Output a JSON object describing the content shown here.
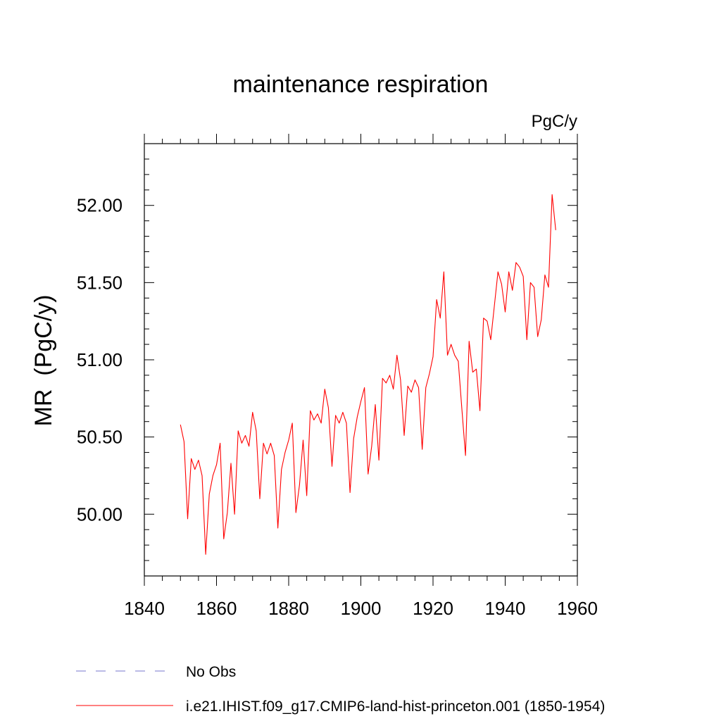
{
  "chart_data": {
    "type": "line",
    "title": "maintenance respiration",
    "units_label": "PgC/y",
    "ylabel": "MR  (PgC/y)",
    "xlabel": "",
    "xlim": [
      1840,
      1960
    ],
    "ylim": [
      49.6,
      52.4
    ],
    "x_ticks": [
      1840,
      1860,
      1880,
      1900,
      1920,
      1940,
      1960
    ],
    "y_ticks": [
      50.0,
      50.5,
      51.0,
      51.5,
      52.0
    ],
    "y_tick_labels": [
      "50.00",
      "50.50",
      "51.00",
      "51.50",
      "52.00"
    ],
    "grid": false,
    "legend_position": "bottom",
    "series": [
      {
        "name": "i.e21.IHIST.f09_g17.CMIP6-land-hist-princeton.001 (1850-1954)",
        "color": "#ff0000",
        "style": "solid",
        "x_start": 1850,
        "x_step": 1,
        "values": [
          50.58,
          50.47,
          49.97,
          50.36,
          50.29,
          50.35,
          50.25,
          49.74,
          50.13,
          50.25,
          50.32,
          50.46,
          49.84,
          50.01,
          50.33,
          50.0,
          50.54,
          50.46,
          50.51,
          50.44,
          50.66,
          50.54,
          50.1,
          50.46,
          50.39,
          50.46,
          50.38,
          49.91,
          50.29,
          50.4,
          50.48,
          50.59,
          50.01,
          50.19,
          50.48,
          50.12,
          50.67,
          50.61,
          50.65,
          50.59,
          50.81,
          50.69,
          50.31,
          50.64,
          50.59,
          50.66,
          50.59,
          50.14,
          50.49,
          50.63,
          50.73,
          50.82,
          50.26,
          50.44,
          50.71,
          50.35,
          50.88,
          50.85,
          50.9,
          50.81,
          51.03,
          50.87,
          50.51,
          50.83,
          50.79,
          50.87,
          50.82,
          50.42,
          50.82,
          50.91,
          51.02,
          51.39,
          51.27,
          51.57,
          51.03,
          51.1,
          51.03,
          50.99,
          50.68,
          50.38,
          51.12,
          50.92,
          50.94,
          50.67,
          51.27,
          51.25,
          51.13,
          51.35,
          51.57,
          51.49,
          51.31,
          51.57,
          51.45,
          51.63,
          51.6,
          51.54,
          51.13,
          51.5,
          51.47,
          51.15,
          51.26,
          51.55,
          51.47,
          52.07,
          51.84
        ]
      },
      {
        "name": "No Obs",
        "color": "#7777cc",
        "style": "dashed",
        "values": []
      }
    ]
  }
}
